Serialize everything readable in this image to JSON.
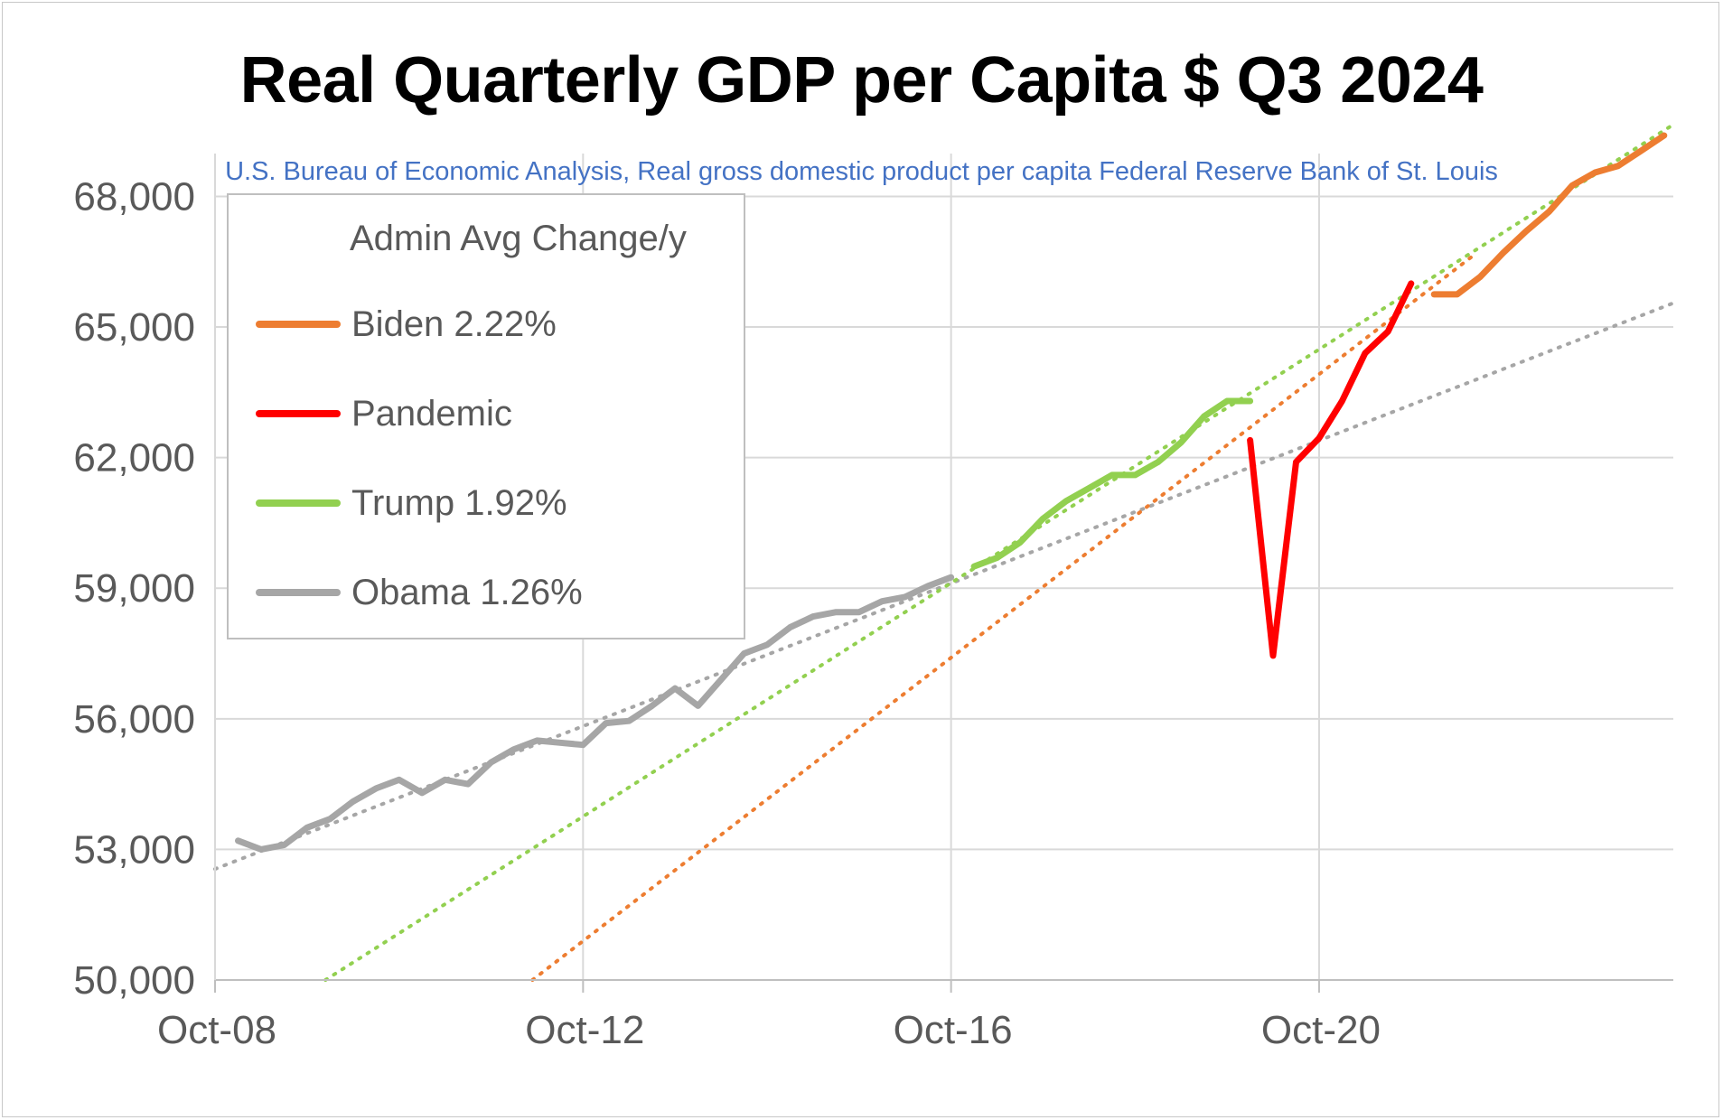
{
  "chart_data": {
    "type": "line",
    "title": "Real Quarterly GDP per Capita $ Q3 2024",
    "subtitle": "U.S. Bureau of Economic Analysis, Real gross domestic product per capita Federal Reserve Bank of St. Louis",
    "xlabel": "",
    "ylabel": "",
    "x_ticks": [
      "Oct-08",
      "Oct-12",
      "Oct-16",
      "Oct-20"
    ],
    "y_ticks": [
      "50,000",
      "53,000",
      "56,000",
      "59,000",
      "62,000",
      "65,000",
      "68,000"
    ],
    "ylim": [
      50000,
      69400
    ],
    "xlim": [
      2008.75,
      2024.6
    ],
    "grid": true,
    "legend": {
      "position": "top-left",
      "title": "Admin Avg Change/y",
      "entries": [
        {
          "label": "Biden 2.22%",
          "color": "#ed7d31"
        },
        {
          "label": "Pandemic",
          "color": "#ff0000"
        },
        {
          "label": "Trump 1.92%",
          "color": "#92d050"
        },
        {
          "label": "Obama 1.26%",
          "color": "#a6a6a6"
        }
      ]
    },
    "series": [
      {
        "name": "Obama 1.26%",
        "color": "#a6a6a6",
        "x": [
          2009.0,
          2009.25,
          2009.5,
          2009.75,
          2010.0,
          2010.25,
          2010.5,
          2010.75,
          2011.0,
          2011.25,
          2011.5,
          2011.75,
          2012.0,
          2012.25,
          2012.5,
          2012.75,
          2013.0,
          2013.25,
          2013.5,
          2013.75,
          2014.0,
          2014.25,
          2014.5,
          2014.75,
          2015.0,
          2015.25,
          2015.5,
          2015.75,
          2016.0,
          2016.25,
          2016.5,
          2016.75
        ],
        "y": [
          53200,
          53000,
          53100,
          53500,
          53700,
          54100,
          54400,
          54600,
          54300,
          54600,
          54500,
          55000,
          55300,
          55500,
          55450,
          55400,
          55900,
          55950,
          56300,
          56700,
          56300,
          56900,
          57500,
          57700,
          58100,
          58350,
          58450,
          58450,
          58700,
          58800,
          59050,
          59250
        ]
      },
      {
        "name": "Trump 1.92%",
        "color": "#92d050",
        "x": [
          2017.0,
          2017.25,
          2017.5,
          2017.75,
          2018.0,
          2018.25,
          2018.5,
          2018.75,
          2019.0,
          2019.25,
          2019.5,
          2019.75,
          2020.0
        ],
        "y": [
          59500,
          59700,
          60050,
          60600,
          61000,
          61300,
          61600,
          61600,
          61900,
          62350,
          62950,
          63300,
          63300
        ]
      },
      {
        "name": "Pandemic",
        "color": "#ff0000",
        "x": [
          2020.0,
          2020.25,
          2020.5,
          2020.75,
          2021.0,
          2021.25,
          2021.5,
          2021.75
        ],
        "y": [
          62400,
          57450,
          61900,
          62450,
          63300,
          64400,
          64900,
          66000
        ]
      },
      {
        "name": "Biden 2.22%",
        "color": "#ed7d31",
        "x": [
          2022.0,
          2022.25,
          2022.5,
          2022.75,
          2023.0,
          2023.25,
          2023.5,
          2023.75,
          2024.0,
          2024.25,
          2024.5
        ],
        "y": [
          65750,
          65750,
          66150,
          66700,
          67200,
          67650,
          68250,
          68550,
          68700,
          69050,
          69400
        ]
      }
    ],
    "trendlines": [
      {
        "name": "Obama trend",
        "color": "#a6a6a6",
        "x": [
          2008.75,
          2024.6
        ],
        "y": [
          52550,
          65550
        ]
      },
      {
        "name": "Trump trend",
        "color": "#92d050",
        "x": [
          2009.95,
          2024.6
        ],
        "y": [
          50000,
          69650
        ]
      },
      {
        "name": "Biden trend",
        "color": "#ed7d31",
        "x": [
          2012.2,
          2022.4
        ],
        "y": [
          50000,
          66600
        ]
      }
    ]
  }
}
